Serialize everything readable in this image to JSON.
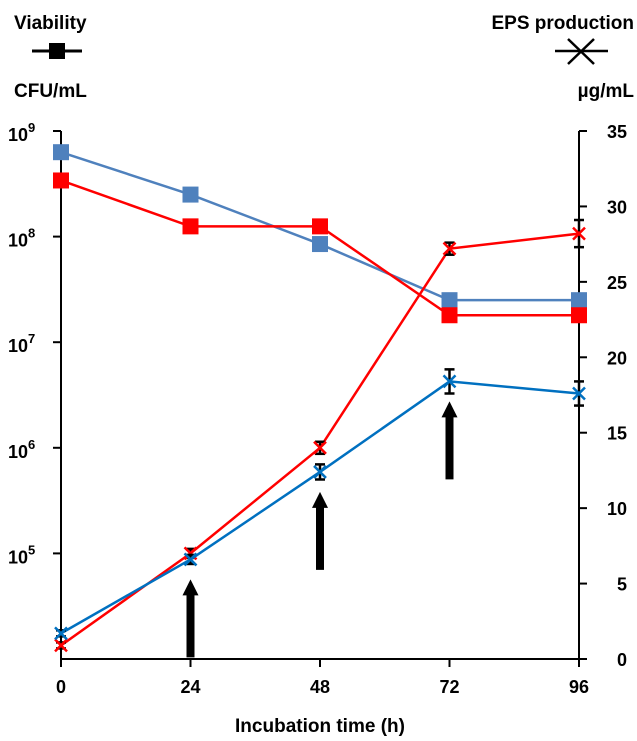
{
  "chart_data": {
    "type": "line",
    "legend": {
      "left_header": "Viability",
      "left_unit": "CFU/mL",
      "right_header": "EPS production",
      "right_unit": "µg/mL"
    },
    "xlabel": "Incubation time (h)",
    "x": [
      0,
      24,
      48,
      72,
      96
    ],
    "xlim": [
      0,
      96
    ],
    "x_ticks": [
      "0",
      "24",
      "48",
      "72",
      "96"
    ],
    "y_left": {
      "scale": "log",
      "ylim": [
        10000,
        1000000000
      ],
      "ticks": [
        {
          "base": "10",
          "exp": "9",
          "value": 1000000000
        },
        {
          "base": "10",
          "exp": "8",
          "value": 100000000
        },
        {
          "base": "10",
          "exp": "7",
          "value": 10000000
        },
        {
          "base": "10",
          "exp": "6",
          "value": 1000000
        },
        {
          "base": "10",
          "exp": "5",
          "value": 100000
        }
      ]
    },
    "y_right": {
      "scale": "linear",
      "ylim": [
        0,
        35
      ],
      "ticks": [
        "0",
        "5",
        "10",
        "15",
        "20",
        "25",
        "30",
        "35"
      ]
    },
    "series": [
      {
        "axis": "left",
        "marker": "square",
        "color": "#4F81BD",
        "values": [
          630000000,
          250000000,
          85000000,
          25000000,
          25000000
        ]
      },
      {
        "axis": "left",
        "marker": "square",
        "color": "#FF0000",
        "values": [
          340000000,
          125000000,
          125000000,
          18000000,
          18000000
        ]
      },
      {
        "axis": "right",
        "marker": "x",
        "color": "#FF0000",
        "values": [
          0.9,
          7.0,
          14.0,
          27.2,
          28.2
        ],
        "errors": [
          0.2,
          0.3,
          0.4,
          0.4,
          0.9
        ]
      },
      {
        "axis": "right",
        "marker": "x",
        "color": "#0070C0",
        "values": [
          1.7,
          6.6,
          12.4,
          18.4,
          17.6
        ],
        "errors": [
          0.2,
          0.3,
          0.5,
          0.8,
          0.8
        ]
      }
    ],
    "arrows_at_x": [
      24,
      48,
      72
    ],
    "grid": false
  }
}
